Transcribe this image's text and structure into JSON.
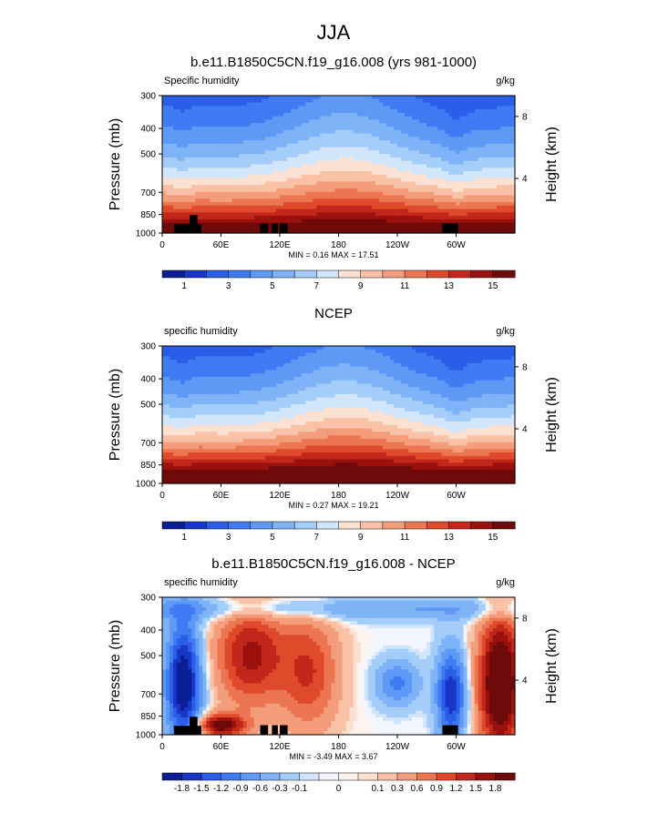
{
  "figure": {
    "title": "JJA"
  },
  "colors": {
    "abs_scale": [
      "#0a1e96",
      "#1837c6",
      "#2b5ee8",
      "#3f7bf2",
      "#5e99f5",
      "#7fb3f7",
      "#a4cdf9",
      "#d2e6fb",
      "#fbe1d2",
      "#f9c1a6",
      "#f49d7b",
      "#ec7552",
      "#df4a2b",
      "#c1271a",
      "#9a110e",
      "#6e0a0a"
    ],
    "diff_scale": [
      "#0a1e96",
      "#1837c6",
      "#2b5ee8",
      "#3f7bf2",
      "#5e99f5",
      "#7fb3f7",
      "#a4cdf9",
      "#d2e6fb",
      "#f3f6ff",
      "#fff3ee",
      "#fbe1d2",
      "#f9c1a6",
      "#f49d7b",
      "#ec7552",
      "#df4a2b",
      "#c1271a",
      "#9a110e",
      "#6e0a0a"
    ],
    "topography": "#000000"
  },
  "chart_data": [
    {
      "type": "heatmap",
      "title": "b.e11.B1850C5CN.f19_g16.008 (yrs 981-1000)",
      "left_label": "Specific humidity",
      "right_label": "g/kg",
      "ylabel": "Pressure (mb)",
      "y2label": "Height (km)",
      "yticks": [
        "300",
        "400",
        "500",
        "700",
        "850",
        "1000"
      ],
      "y2ticks": [
        "8",
        "4"
      ],
      "xticks": [
        "0",
        "60E",
        "120E",
        "180",
        "120W",
        "60W"
      ],
      "stats_text": "MIN =  0.16  MAX =  17.51",
      "colorbar_labels": [
        "1",
        "3",
        "5",
        "7",
        "9",
        "11",
        "13",
        "15"
      ],
      "levels": [
        1,
        2,
        3,
        4,
        5,
        6,
        7,
        8,
        9,
        10,
        11,
        12,
        13,
        14,
        15
      ],
      "min": 0.16,
      "max": 17.51
    },
    {
      "type": "heatmap",
      "title": "NCEP",
      "left_label": "specific humidity",
      "right_label": "g/kg",
      "ylabel": "Pressure (mb)",
      "y2label": "Height (km)",
      "yticks": [
        "300",
        "400",
        "500",
        "700",
        "850",
        "1000"
      ],
      "y2ticks": [
        "8",
        "4"
      ],
      "xticks": [
        "0",
        "60E",
        "120E",
        "180",
        "120W",
        "60W"
      ],
      "stats_text": "MIN =  0.27  MAX =  19.21",
      "colorbar_labels": [
        "1",
        "3",
        "5",
        "7",
        "9",
        "11",
        "13",
        "15"
      ],
      "levels": [
        1,
        2,
        3,
        4,
        5,
        6,
        7,
        8,
        9,
        10,
        11,
        12,
        13,
        14,
        15
      ],
      "min": 0.27,
      "max": 19.21
    },
    {
      "type": "heatmap",
      "title": "b.e11.B1850C5CN.f19_g16.008 - NCEP",
      "left_label": "specific humidity",
      "right_label": "g/kg",
      "ylabel": "Pressure (mb)",
      "y2label": "Height (km)",
      "yticks": [
        "300",
        "400",
        "500",
        "700",
        "850",
        "1000"
      ],
      "y2ticks": [
        "8",
        "4"
      ],
      "xticks": [
        "0",
        "60E",
        "120E",
        "180",
        "120W",
        "60W"
      ],
      "stats_text": "MIN = -3.49  MAX =  3.67",
      "colorbar_labels": [
        "-1.8",
        "-1.5",
        "-1.2",
        "-0.9",
        "-0.6",
        "-0.3",
        "-0.1",
        "0",
        "0.1",
        "0.3",
        "0.6",
        "0.9",
        "1.2",
        "1.5",
        "1.8"
      ],
      "levels": [
        -1.8,
        -1.5,
        -1.2,
        -0.9,
        -0.6,
        -0.3,
        -0.1,
        -0.05,
        0,
        0.05,
        0.1,
        0.3,
        0.6,
        0.9,
        1.2,
        1.5,
        1.8
      ],
      "min": -3.49,
      "max": 3.67
    }
  ]
}
